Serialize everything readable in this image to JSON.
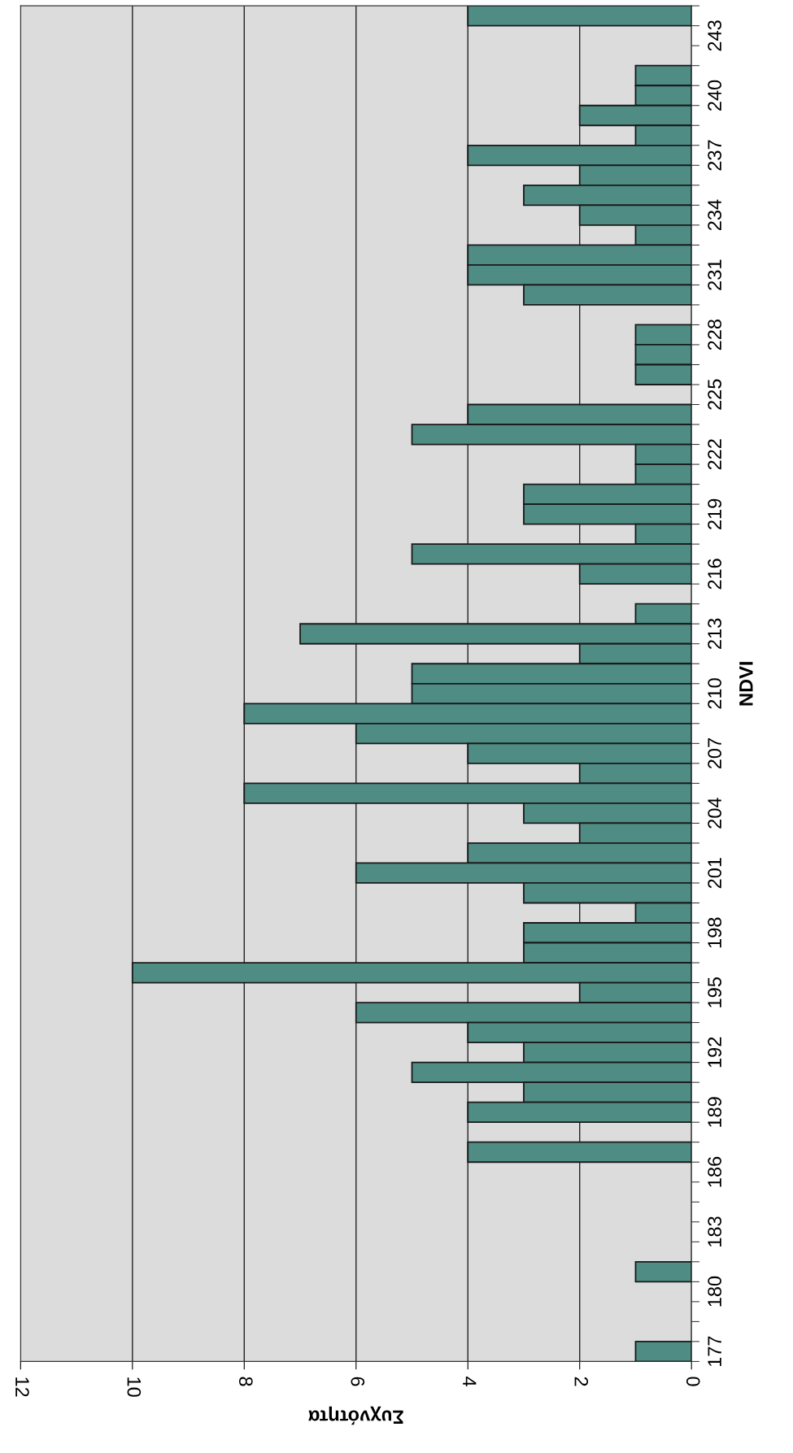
{
  "chart_data": {
    "type": "bar",
    "orientation": "horizontal",
    "xlabel": "Συχνότητα",
    "ylabel": "NDVI",
    "categories": [
      null,
      "243",
      null,
      null,
      "240",
      null,
      null,
      "237",
      null,
      null,
      "234",
      null,
      null,
      "231",
      null,
      null,
      "228",
      null,
      null,
      "225",
      null,
      null,
      "222",
      null,
      null,
      "219",
      null,
      null,
      "216",
      null,
      null,
      "213",
      null,
      null,
      "210",
      null,
      null,
      "207",
      null,
      null,
      "204",
      null,
      null,
      "201",
      null,
      null,
      "198",
      null,
      null,
      "195",
      null,
      null,
      "192",
      null,
      null,
      "189",
      null,
      null,
      "186",
      null,
      null,
      "183",
      null,
      null,
      "180",
      null,
      null,
      "177"
    ],
    "values": [
      4,
      0,
      0,
      1,
      1,
      2,
      1,
      4,
      2,
      3,
      2,
      1,
      4,
      4,
      3,
      0,
      1,
      1,
      1,
      0,
      4,
      5,
      1,
      1,
      3,
      3,
      1,
      5,
      2,
      0,
      1,
      7,
      2,
      5,
      5,
      8,
      6,
      4,
      2,
      8,
      3,
      2,
      4,
      6,
      3,
      1,
      3,
      3,
      10,
      2,
      6,
      4,
      3,
      5,
      3,
      4,
      0,
      4,
      0,
      0,
      0,
      0,
      0,
      1,
      0,
      0,
      0,
      1
    ],
    "color": "#4f8c84",
    "xlim": [
      12,
      0
    ],
    "xticks": [
      0,
      2,
      4,
      6,
      8,
      10,
      12
    ],
    "grid": "x"
  }
}
